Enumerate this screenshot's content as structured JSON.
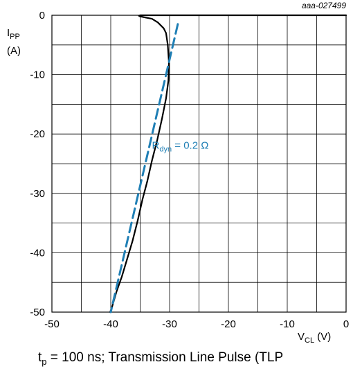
{
  "figure": {
    "ref_code": "aaa-027499",
    "caption_prefix": "t",
    "caption_sub": "p",
    "caption_rest": " = 100 ns; Transmission Line Pulse (TLP"
  },
  "chart_data": {
    "type": "line",
    "title": "",
    "xlabel_main": "V",
    "xlabel_sub": "CL",
    "xlabel_unit": " (V)",
    "ylabel_main": "I",
    "ylabel_sub": "PP",
    "ylabel_unit": "(A)",
    "xlim": [
      -50,
      0
    ],
    "ylim": [
      -50,
      0
    ],
    "x_ticks": [
      -50,
      -40,
      -30,
      -20,
      -10,
      0
    ],
    "y_ticks": [
      0,
      -10,
      -20,
      -30,
      -40,
      -50
    ],
    "grid": true,
    "annotation": {
      "main": "R",
      "sub": "dyn",
      "rest": " = 0.2 Ω",
      "x": -33,
      "y": -22.5
    },
    "series": [
      {
        "style": "solid",
        "color": "#000000",
        "x": [
          0,
          -10,
          -20,
          -28,
          -30,
          -32,
          -33,
          -34,
          -35,
          -35.2,
          -35,
          -34,
          -33,
          -32,
          -31,
          -30.6,
          -30.3,
          -30.1,
          -30.2,
          -30.6,
          -31.3,
          -32.1,
          -33,
          -33.8,
          -34.6,
          -35.4,
          -36.3,
          -37.2,
          -38.1,
          -39,
          -39.8,
          -40.1
        ],
        "y": [
          0,
          0,
          0,
          0,
          0,
          0,
          0,
          0,
          0,
          -0.1,
          -0.2,
          -0.4,
          -0.6,
          -1.2,
          -2.2,
          -3.0,
          -5,
          -8,
          -11,
          -14,
          -17.5,
          -21,
          -24.5,
          -28,
          -31,
          -34.5,
          -38,
          -41,
          -44,
          -46.5,
          -49.2,
          -50
        ]
      },
      {
        "style": "dashed",
        "color": "#1f7fb5",
        "x": [
          -28.6,
          -40
        ],
        "y": [
          -1.5,
          -50
        ]
      }
    ]
  }
}
